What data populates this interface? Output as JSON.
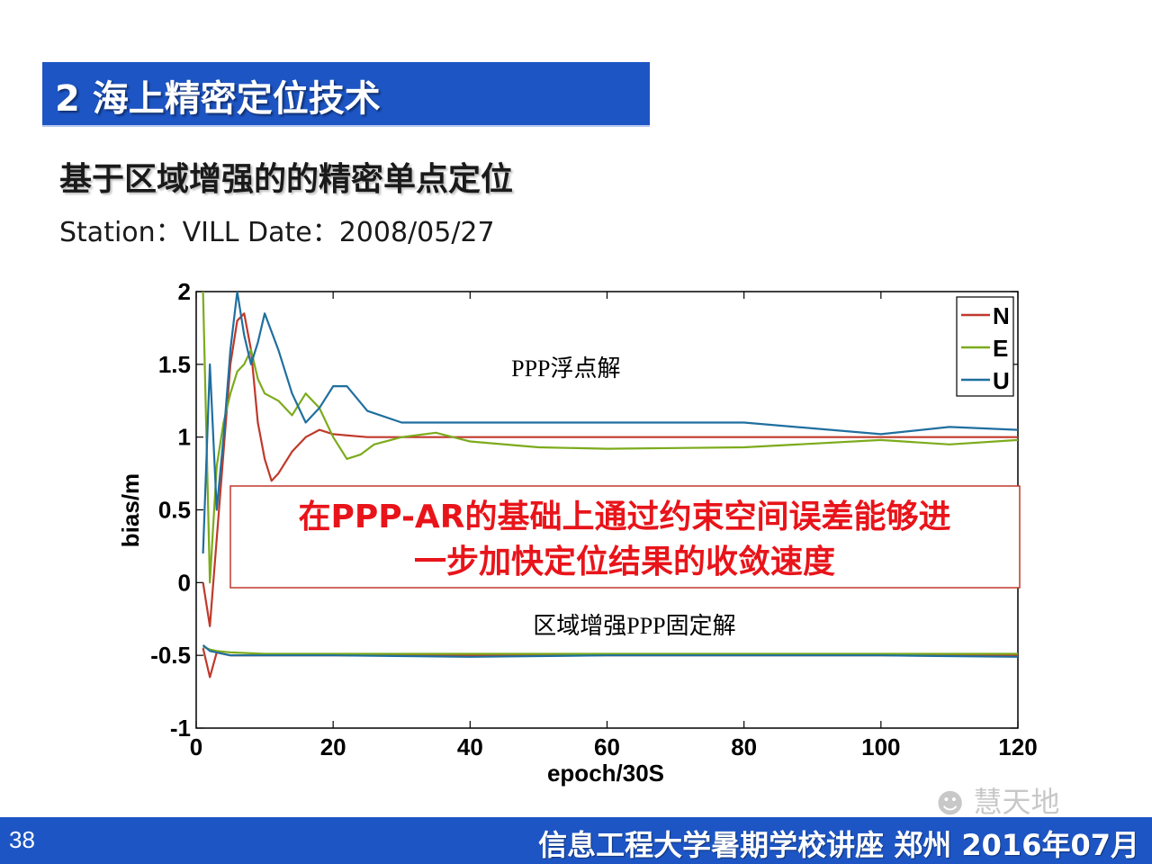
{
  "header": {
    "title": "2 海上精密定位技术"
  },
  "subtitle": "基于区域增强的的精密单点定位",
  "station_line": "Station：VILL Date：2008/05/27",
  "footer": {
    "slide_number": "38",
    "text": "信息工程大学暑期学校讲座  郑州  2016年07月"
  },
  "watermark": {
    "text": "慧天地",
    "icon": "wechat-icon"
  },
  "callout": {
    "line1": "在PPP-AR的基础上通过约束空间误差能够进",
    "line2": "一步加快定位结果的收敛速度",
    "color": "#e8141a"
  },
  "chart_data": {
    "type": "line",
    "xlabel": "epoch/30S",
    "ylabel": "bias/m",
    "xlim": [
      0,
      120
    ],
    "ylim": [
      -1,
      2
    ],
    "xticks": [
      0,
      20,
      40,
      60,
      80,
      100,
      120
    ],
    "yticks": [
      2,
      1.5,
      1,
      0.5,
      0,
      -0.5,
      -1
    ],
    "legend_position": "top-right",
    "grid": false,
    "annotations": [
      {
        "text": "PPP浮点解",
        "x": 54,
        "y": 1.42
      },
      {
        "text": "区域增强PPP固定解",
        "x": 64,
        "y": -0.35
      }
    ],
    "series": [
      {
        "name": "N",
        "color": "#c0392b",
        "group": "float",
        "x": [
          1,
          2,
          3,
          4,
          5,
          6,
          7,
          8,
          9,
          10,
          11,
          12,
          14,
          16,
          18,
          20,
          25,
          30,
          40,
          60,
          80,
          100,
          120
        ],
        "y": [
          0.0,
          -0.3,
          0.3,
          0.9,
          1.5,
          1.8,
          1.85,
          1.6,
          1.1,
          0.85,
          0.7,
          0.75,
          0.9,
          1.0,
          1.05,
          1.02,
          1.0,
          1.0,
          1.0,
          1.0,
          1.0,
          1.0,
          1.0
        ]
      },
      {
        "name": "E",
        "color": "#7cab1c",
        "group": "float",
        "x": [
          1,
          2,
          3,
          4,
          5,
          6,
          7,
          8,
          9,
          10,
          12,
          14,
          16,
          18,
          20,
          22,
          24,
          26,
          30,
          35,
          40,
          50,
          60,
          80,
          100,
          110,
          120
        ],
        "y": [
          2.0,
          0.0,
          0.8,
          1.1,
          1.3,
          1.45,
          1.5,
          1.6,
          1.4,
          1.3,
          1.25,
          1.15,
          1.3,
          1.2,
          1.0,
          0.85,
          0.88,
          0.95,
          1.0,
          1.03,
          0.97,
          0.93,
          0.92,
          0.93,
          0.98,
          0.95,
          0.98
        ]
      },
      {
        "name": "U",
        "color": "#1f6f9f",
        "group": "float",
        "x": [
          1,
          2,
          3,
          4,
          5,
          6,
          7,
          8,
          9,
          10,
          12,
          14,
          16,
          18,
          20,
          22,
          25,
          30,
          40,
          60,
          80,
          100,
          110,
          120
        ],
        "y": [
          0.2,
          1.5,
          0.5,
          1.0,
          1.6,
          2.0,
          1.7,
          1.5,
          1.65,
          1.85,
          1.6,
          1.3,
          1.1,
          1.2,
          1.35,
          1.35,
          1.18,
          1.1,
          1.1,
          1.1,
          1.1,
          1.02,
          1.07,
          1.05
        ]
      },
      {
        "name": "N",
        "color": "#c0392b",
        "group": "fixed",
        "x": [
          1,
          2,
          3,
          5,
          10,
          20,
          40,
          60,
          80,
          100,
          120
        ],
        "y": [
          -0.45,
          -0.65,
          -0.48,
          -0.5,
          -0.5,
          -0.5,
          -0.5,
          -0.5,
          -0.5,
          -0.5,
          -0.5
        ]
      },
      {
        "name": "E",
        "color": "#7cab1c",
        "group": "fixed",
        "x": [
          1,
          2,
          3,
          5,
          10,
          20,
          40,
          60,
          80,
          100,
          120
        ],
        "y": [
          -0.44,
          -0.46,
          -0.47,
          -0.48,
          -0.49,
          -0.49,
          -0.49,
          -0.49,
          -0.49,
          -0.49,
          -0.49
        ]
      },
      {
        "name": "U",
        "color": "#1f6f9f",
        "group": "fixed",
        "x": [
          1,
          2,
          3,
          5,
          10,
          20,
          40,
          60,
          80,
          100,
          120
        ],
        "y": [
          -0.43,
          -0.47,
          -0.48,
          -0.5,
          -0.5,
          -0.5,
          -0.51,
          -0.5,
          -0.5,
          -0.5,
          -0.51
        ]
      }
    ]
  }
}
